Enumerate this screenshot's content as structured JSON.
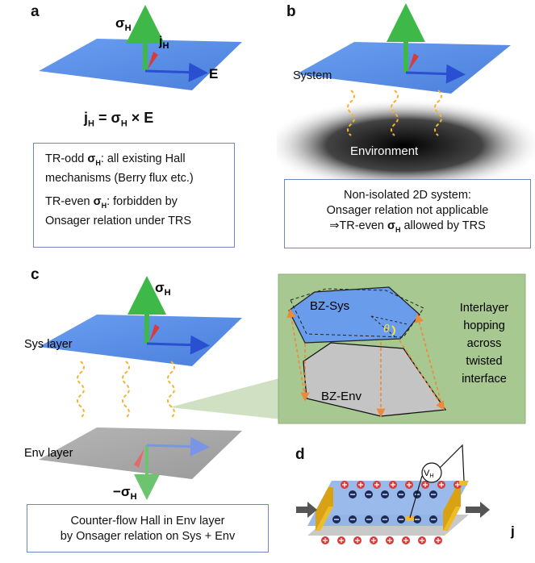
{
  "panels": {
    "a": {
      "letter": "a",
      "label_sigma": "σ",
      "label_sigma_sub": "H",
      "label_j": "j",
      "label_j_sub": "H",
      "label_E": "E",
      "equation": {
        "j": "j",
        "j_sub": "H",
        "equals": " = ",
        "sigma": "σ",
        "sigma_sub": "H",
        "times": " × ",
        "E": "E"
      },
      "box": {
        "p1_pre": "TR-odd ",
        "p1_sigma": "σ",
        "p1_sub": "H",
        "p1_post": ": all existing Hall mechanisms (Berry flux etc.)",
        "p2_pre": "TR-even ",
        "p2_sigma": "σ",
        "p2_sub": "H",
        "p2_post": ": forbidden by Onsager relation under TRS"
      }
    },
    "b": {
      "letter": "b",
      "system_label": "System",
      "environment_label": "Environment",
      "box": {
        "line1": "Non-isolated 2D system:",
        "line2": "Onsager relation not applicable",
        "line3_pre": "⇒TR-even ",
        "line3_sigma": "σ",
        "line3_sub": "H",
        "line3_post": " allowed by TRS"
      }
    },
    "c": {
      "letter": "c",
      "sigma": "σ",
      "sigma_sub": "H",
      "neg_sigma": "−σ",
      "neg_sigma_sub": "H",
      "sys_layer": "Sys layer",
      "env_layer": "Env layer",
      "bz_sys": "BZ-Sys",
      "bz_env": "BZ-Env",
      "theta": "θ",
      "inset_text": [
        "Interlayer",
        "hopping",
        "across",
        "twisted",
        "interface"
      ],
      "box": {
        "line1": "Counter-flow Hall in Env layer",
        "line2": "by Onsager relation on Sys + Env"
      }
    },
    "d": {
      "letter": "d",
      "vh_label": "V",
      "vh_sub": "H",
      "j_label": "j"
    }
  },
  "colors": {
    "sheet_blue": "#5b8fe6",
    "sheet_gray": "#a8a8a8",
    "arrow_green": "#3fb84a",
    "arrow_blue": "#2a4fd0",
    "arrow_red": "#d93a3a",
    "wave_orange": "#f2b431",
    "inset_bg": "#a7c890",
    "hop_orange": "#ec8a3a",
    "theta_yellow": "#f5e23a",
    "contact_yellow": "#efbc25",
    "box_border": "#6f86c2"
  }
}
